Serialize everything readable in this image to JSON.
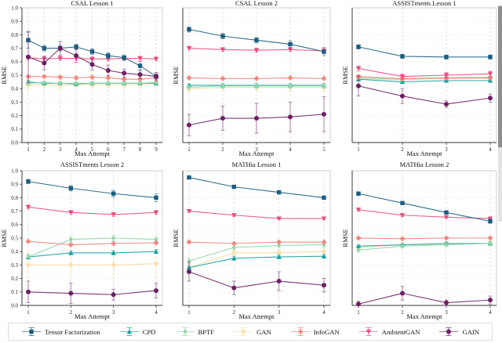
{
  "figure_name": "RMSE vs Max Attempt comparison grid",
  "series_meta": [
    {
      "name": "Tensor Factorization",
      "color": "#1b5e80",
      "marker": "square"
    },
    {
      "name": "CPD",
      "color": "#17a2a0",
      "marker": "triangle-up"
    },
    {
      "name": "BPTF",
      "color": "#90d6a7",
      "marker": "diamond"
    },
    {
      "name": "GAN",
      "color": "#f7dda3",
      "marker": "star"
    },
    {
      "name": "InfoGAN",
      "color": "#f0837a",
      "marker": "plus"
    },
    {
      "name": "AmbientGAN",
      "color": "#e84a82",
      "marker": "triangle-down"
    },
    {
      "name": "GAIN",
      "color": "#6e2064",
      "marker": "circle"
    }
  ],
  "scrollbar": {
    "present": true
  },
  "chart_data": [
    {
      "type": "line",
      "title": "CSAL Lesson 1",
      "xlabel": "Max Attempt",
      "ylabel": "RMSE",
      "ylim": [
        0.0,
        1.0
      ],
      "yticks": [
        0.0,
        0.1,
        0.2,
        0.3,
        0.4,
        0.5,
        0.6,
        0.7,
        0.8,
        0.9,
        1.0
      ],
      "grid": true,
      "x": [
        1,
        2,
        3,
        4,
        5,
        6,
        7,
        8,
        9
      ],
      "series": [
        {
          "name": "Tensor Factorization",
          "values": [
            0.76,
            0.7,
            0.7,
            0.71,
            0.675,
            0.645,
            0.63,
            0.57,
            0.49
          ],
          "err": [
            0.06,
            0.02,
            0.02,
            0.02,
            0.02,
            0.02,
            0.02,
            0.03,
            0.02
          ]
        },
        {
          "name": "CPD",
          "values": [
            0.45,
            0.44,
            0.44,
            0.435,
            0.44,
            0.44,
            0.44,
            0.44,
            0.44
          ],
          "err": [
            0.01,
            0.01,
            0.01,
            0.01,
            0.01,
            0.01,
            0.01,
            0.01,
            0.01
          ]
        },
        {
          "name": "BPTF",
          "values": [
            0.44,
            0.445,
            0.44,
            0.44,
            0.44,
            0.44,
            0.44,
            0.44,
            0.445
          ],
          "err": [
            0.01,
            0.01,
            0.01,
            0.01,
            0.01,
            0.01,
            0.01,
            0.01,
            0.01
          ]
        },
        {
          "name": "GAN",
          "values": [
            0.425,
            0.43,
            0.425,
            0.43,
            0.43,
            0.43,
            0.43,
            0.43,
            0.44
          ],
          "err": [
            0.03,
            0.02,
            0.03,
            0.02,
            0.02,
            0.02,
            0.02,
            0.02,
            0.02
          ]
        },
        {
          "name": "InfoGAN",
          "values": [
            0.49,
            0.49,
            0.485,
            0.48,
            0.485,
            0.48,
            0.47,
            0.47,
            0.48
          ],
          "err": [
            0.01,
            0.01,
            0.01,
            0.01,
            0.015,
            0.015,
            0.01,
            0.01,
            0.03
          ]
        },
        {
          "name": "AmbientGAN",
          "values": [
            0.63,
            0.62,
            0.625,
            0.625,
            0.62,
            0.62,
            0.625,
            0.625,
            0.62
          ],
          "err": [
            0.015,
            0.015,
            0.015,
            0.015,
            0.015,
            0.015,
            0.015,
            0.015,
            0.015
          ]
        },
        {
          "name": "GAIN",
          "values": [
            0.635,
            0.59,
            0.7,
            0.645,
            0.58,
            0.535,
            0.515,
            0.505,
            0.49
          ],
          "err": [
            0.19,
            0.05,
            0.05,
            0.05,
            0.04,
            0.04,
            0.03,
            0.03,
            0.03
          ]
        }
      ]
    },
    {
      "type": "line",
      "title": "CSAL Lesson 2",
      "xlabel": "Max Attempt",
      "ylabel": "RMSE",
      "ylim": [
        0.0,
        1.0
      ],
      "yticks": [
        0.0,
        0.1,
        0.2,
        0.3,
        0.4,
        0.5,
        0.6,
        0.7,
        0.8,
        0.9,
        1.0
      ],
      "grid": true,
      "x": [
        1,
        2,
        3,
        4,
        5
      ],
      "series": [
        {
          "name": "Tensor Factorization",
          "values": [
            0.84,
            0.79,
            0.76,
            0.73,
            0.675
          ],
          "err": [
            0.02,
            0.02,
            0.02,
            0.025,
            0.03
          ]
        },
        {
          "name": "CPD",
          "values": [
            0.425,
            0.425,
            0.425,
            0.425,
            0.425
          ],
          "err": [
            0.01,
            0.01,
            0.01,
            0.01,
            0.01
          ]
        },
        {
          "name": "BPTF",
          "values": [
            0.41,
            0.42,
            0.42,
            0.42,
            0.42
          ],
          "err": [
            0.02,
            0.02,
            0.02,
            0.02,
            0.02
          ]
        },
        {
          "name": "GAN",
          "values": [
            0.4,
            0.41,
            0.41,
            0.41,
            0.41
          ],
          "err": [
            0.03,
            0.03,
            0.03,
            0.03,
            0.03
          ]
        },
        {
          "name": "InfoGAN",
          "values": [
            0.48,
            0.475,
            0.475,
            0.48,
            0.475
          ],
          "err": [
            0.01,
            0.01,
            0.01,
            0.01,
            0.01
          ]
        },
        {
          "name": "AmbientGAN",
          "values": [
            0.7,
            0.69,
            0.685,
            0.69,
            0.68
          ],
          "err": [
            0.015,
            0.015,
            0.015,
            0.015,
            0.02
          ]
        },
        {
          "name": "GAIN",
          "values": [
            0.13,
            0.18,
            0.18,
            0.19,
            0.21
          ],
          "err": [
            0.08,
            0.09,
            0.11,
            0.11,
            0.13
          ]
        }
      ]
    },
    {
      "type": "line",
      "title": "ASSISTments Lesson 1",
      "xlabel": "Max Attempt",
      "ylabel": "RMSE",
      "ylim": [
        0.0,
        1.0
      ],
      "yticks": [
        0.0,
        0.1,
        0.2,
        0.3,
        0.4,
        0.5,
        0.6,
        0.7,
        0.8,
        0.9,
        1.0
      ],
      "grid": true,
      "x": [
        1,
        2,
        3,
        4
      ],
      "series": [
        {
          "name": "Tensor Factorization",
          "values": [
            0.71,
            0.64,
            0.635,
            0.635
          ],
          "err": [
            0.015,
            0.015,
            0.015,
            0.015
          ]
        },
        {
          "name": "CPD",
          "values": [
            0.47,
            0.45,
            0.46,
            0.46
          ],
          "err": [
            0.01,
            0.01,
            0.01,
            0.01
          ]
        },
        {
          "name": "BPTF",
          "values": [
            0.48,
            0.47,
            0.48,
            0.485
          ],
          "err": [
            0.01,
            0.01,
            0.01,
            0.01
          ]
        },
        {
          "name": "GAN",
          "values": [
            0.475,
            0.465,
            0.475,
            0.475
          ],
          "err": [
            0.02,
            0.02,
            0.02,
            0.02
          ]
        },
        {
          "name": "InfoGAN",
          "values": [
            0.49,
            0.475,
            0.48,
            0.48
          ],
          "err": [
            0.01,
            0.01,
            0.01,
            0.01
          ]
        },
        {
          "name": "AmbientGAN",
          "values": [
            0.55,
            0.49,
            0.5,
            0.51
          ],
          "err": [
            0.02,
            0.02,
            0.02,
            0.02
          ]
        },
        {
          "name": "GAIN",
          "values": [
            0.42,
            0.345,
            0.285,
            0.33
          ],
          "err": [
            0.075,
            0.055,
            0.025,
            0.03
          ]
        }
      ]
    },
    {
      "type": "line",
      "title": "ASSISTments Lesson 2",
      "xlabel": "Max Attempt",
      "ylabel": "RMSE",
      "ylim": [
        0.0,
        1.0
      ],
      "yticks": [
        0.0,
        0.1,
        0.2,
        0.3,
        0.4,
        0.5,
        0.6,
        0.7,
        0.8,
        0.9,
        1.0
      ],
      "grid": true,
      "x": [
        1,
        2,
        3,
        4
      ],
      "series": [
        {
          "name": "Tensor Factorization",
          "values": [
            0.92,
            0.87,
            0.83,
            0.8
          ],
          "err": [
            0.015,
            0.02,
            0.025,
            0.03
          ]
        },
        {
          "name": "CPD",
          "values": [
            0.36,
            0.39,
            0.39,
            0.4
          ],
          "err": [
            0.015,
            0.015,
            0.015,
            0.015
          ]
        },
        {
          "name": "BPTF",
          "values": [
            0.36,
            0.49,
            0.5,
            0.49
          ],
          "err": [
            0.02,
            0.02,
            0.02,
            0.02
          ]
        },
        {
          "name": "GAN",
          "values": [
            0.3,
            0.3,
            0.3,
            0.31
          ],
          "err": [
            0.09,
            0.08,
            0.1,
            0.1
          ]
        },
        {
          "name": "InfoGAN",
          "values": [
            0.475,
            0.45,
            0.46,
            0.465
          ],
          "err": [
            0.01,
            0.01,
            0.01,
            0.01
          ]
        },
        {
          "name": "AmbientGAN",
          "values": [
            0.73,
            0.69,
            0.675,
            0.69
          ],
          "err": [
            0.015,
            0.015,
            0.015,
            0.015
          ]
        },
        {
          "name": "GAIN",
          "values": [
            0.1,
            0.09,
            0.08,
            0.11
          ],
          "err": [
            0.08,
            0.075,
            0.04,
            0.055
          ]
        }
      ]
    },
    {
      "type": "line",
      "title": "MATHia Lesson 1",
      "xlabel": "Max Attempt",
      "ylabel": "RMSE",
      "ylim": [
        0.0,
        1.0
      ],
      "yticks": [
        0.0,
        0.1,
        0.2,
        0.3,
        0.4,
        0.5,
        0.6,
        0.7,
        0.8,
        0.9,
        1.0
      ],
      "grid": true,
      "x": [
        1,
        2,
        3,
        4
      ],
      "series": [
        {
          "name": "Tensor Factorization",
          "values": [
            0.95,
            0.88,
            0.84,
            0.8
          ],
          "err": [
            0.01,
            0.01,
            0.01,
            0.01
          ]
        },
        {
          "name": "CPD",
          "values": [
            0.28,
            0.35,
            0.36,
            0.365
          ],
          "err": [
            0.015,
            0.015,
            0.015,
            0.015
          ]
        },
        {
          "name": "BPTF",
          "values": [
            0.33,
            0.43,
            0.445,
            0.45
          ],
          "err": [
            0.02,
            0.02,
            0.02,
            0.02
          ]
        },
        {
          "name": "GAN",
          "values": [
            0.28,
            0.39,
            0.39,
            0.4
          ],
          "err": [
            0.025,
            0.02,
            0.02,
            0.02
          ]
        },
        {
          "name": "InfoGAN",
          "values": [
            0.47,
            0.46,
            0.47,
            0.47
          ],
          "err": [
            0.01,
            0.01,
            0.01,
            0.01
          ]
        },
        {
          "name": "AmbientGAN",
          "values": [
            0.7,
            0.67,
            0.645,
            0.645
          ],
          "err": [
            0.01,
            0.01,
            0.01,
            0.01
          ]
        },
        {
          "name": "GAIN",
          "values": [
            0.25,
            0.13,
            0.18,
            0.15
          ],
          "err": [
            0.07,
            0.05,
            0.07,
            0.05
          ]
        }
      ]
    },
    {
      "type": "line",
      "title": "MATHia Lesson 2",
      "xlabel": "Max Attempt",
      "ylabel": "RMSE",
      "ylim": [
        0.0,
        1.0
      ],
      "yticks": [
        0.0,
        0.1,
        0.2,
        0.3,
        0.4,
        0.5,
        0.6,
        0.7,
        0.8,
        0.9,
        1.0
      ],
      "grid": true,
      "x": [
        1,
        2,
        3,
        4
      ],
      "series": [
        {
          "name": "Tensor Factorization",
          "values": [
            0.83,
            0.76,
            0.69,
            0.625
          ],
          "err": [
            0.01,
            0.01,
            0.01,
            0.015
          ]
        },
        {
          "name": "CPD",
          "values": [
            0.44,
            0.45,
            0.46,
            0.46
          ],
          "err": [
            0.01,
            0.01,
            0.01,
            0.01
          ]
        },
        {
          "name": "BPTF",
          "values": [
            0.41,
            0.44,
            0.45,
            0.46
          ],
          "err": [
            0.015,
            0.015,
            0.015,
            0.015
          ]
        },
        {
          "name": "GAN",
          "values": [
            0.43,
            0.45,
            0.455,
            0.46
          ],
          "err": [
            0.02,
            0.02,
            0.02,
            0.02
          ]
        },
        {
          "name": "InfoGAN",
          "values": [
            0.5,
            0.495,
            0.5,
            0.5
          ],
          "err": [
            0.01,
            0.01,
            0.01,
            0.01
          ]
        },
        {
          "name": "AmbientGAN",
          "values": [
            0.71,
            0.67,
            0.655,
            0.645
          ],
          "err": [
            0.01,
            0.01,
            0.01,
            0.01
          ]
        },
        {
          "name": "GAIN",
          "values": [
            0.01,
            0.09,
            0.02,
            0.04
          ],
          "err": [
            0.02,
            0.05,
            0.02,
            0.03
          ]
        }
      ]
    }
  ]
}
